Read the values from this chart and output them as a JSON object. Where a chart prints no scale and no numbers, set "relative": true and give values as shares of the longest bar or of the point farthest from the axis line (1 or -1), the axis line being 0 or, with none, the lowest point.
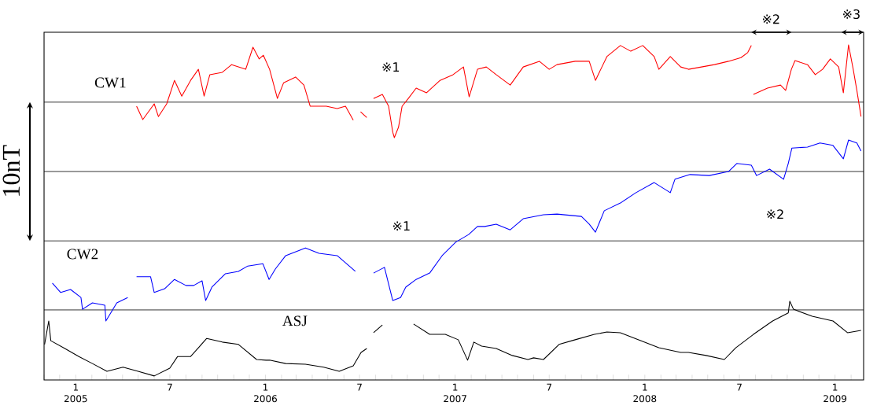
{
  "chart_data": {
    "type": "line",
    "relative": true,
    "line_style": "solid",
    "xlim": [
      "2004-11-01",
      "2009-02-25"
    ],
    "xticks": [
      {
        "value": "2004-11",
        "label": null
      },
      {
        "value": "2004-12",
        "label": null
      },
      {
        "value": "2005-01",
        "label": "1 2005"
      },
      {
        "value": "2005-02",
        "label": null
      },
      {
        "value": "2005-03",
        "label": null
      },
      {
        "value": "2005-04",
        "label": null
      },
      {
        "value": "2005-05",
        "label": null
      },
      {
        "value": "2005-06",
        "label": null
      },
      {
        "value": "2005-07",
        "label": "7"
      },
      {
        "value": "2005-08",
        "label": null
      },
      {
        "value": "2005-09",
        "label": null
      },
      {
        "value": "2005-10",
        "label": null
      },
      {
        "value": "2005-11",
        "label": null
      },
      {
        "value": "2005-12",
        "label": null
      },
      {
        "value": "2006-01",
        "label": "1 2006"
      },
      {
        "value": "2006-02",
        "label": null
      },
      {
        "value": "2006-03",
        "label": null
      },
      {
        "value": "2006-04",
        "label": null
      },
      {
        "value": "2006-05",
        "label": null
      },
      {
        "value": "2006-06",
        "label": null
      },
      {
        "value": "2006-07",
        "label": "7"
      },
      {
        "value": "2006-08",
        "label": null
      },
      {
        "value": "2006-09",
        "label": null
      },
      {
        "value": "2006-10",
        "label": null
      },
      {
        "value": "2006-11",
        "label": null
      },
      {
        "value": "2006-12",
        "label": null
      },
      {
        "value": "2007-01",
        "label": "1 2007"
      },
      {
        "value": "2007-02",
        "label": null
      },
      {
        "value": "2007-03",
        "label": null
      },
      {
        "value": "2007-04",
        "label": null
      },
      {
        "value": "2007-05",
        "label": null
      },
      {
        "value": "2007-06",
        "label": null
      },
      {
        "value": "2007-07",
        "label": "7"
      },
      {
        "value": "2007-08",
        "label": null
      },
      {
        "value": "2007-09",
        "label": null
      },
      {
        "value": "2007-10",
        "label": null
      },
      {
        "value": "2007-11",
        "label": null
      },
      {
        "value": "2007-12",
        "label": null
      },
      {
        "value": "2008-01",
        "label": "1 2008"
      },
      {
        "value": "2008-02",
        "label": null
      },
      {
        "value": "2008-03",
        "label": null
      },
      {
        "value": "2008-04",
        "label": null
      },
      {
        "value": "2008-05",
        "label": null
      },
      {
        "value": "2008-06",
        "label": null
      },
      {
        "value": "2008-07",
        "label": "7"
      },
      {
        "value": "2008-08",
        "label": null
      },
      {
        "value": "2008-09",
        "label": null
      },
      {
        "value": "2008-10",
        "label": null
      },
      {
        "value": "2008-11",
        "label": null
      },
      {
        "value": "2008-12",
        "label": null
      },
      {
        "value": "2009-01",
        "label": "1 2009"
      },
      {
        "value": "2009-02",
        "label": null
      }
    ],
    "series": [
      {
        "name": "CW1",
        "color": "#ff0000",
        "x": [
          "2005-04-28",
          "2005-05-10",
          "2005-06-01",
          "2005-06-09",
          "2005-06-25",
          "2005-07-10",
          "2005-07-24",
          "2005-08-10",
          "2005-08-25",
          "2005-09-05",
          "2005-09-16",
          "2005-10-10",
          "2005-10-28",
          "2005-11-24",
          "2005-12-08",
          "2005-12-20",
          "2005-12-28",
          "2006-01-09",
          "2006-01-24",
          "2006-02-05",
          "2006-02-28",
          "2006-03-16",
          "2006-03-28",
          "2006-04-28",
          "2006-05-19",
          "2006-06-04",
          "2006-06-19",
          "2006-06-30",
          "2006-07-03",
          "2006-07-15",
          "2006-07-20",
          "2006-07-28",
          "2006-08-14",
          "2006-08-26",
          "2006-09-03",
          "2006-09-06",
          "2006-09-14",
          "2006-09-21",
          "2006-10-03",
          "2006-10-18",
          "2006-11-07",
          "2006-12-03",
          "2006-12-28",
          "2007-01-17",
          "2007-01-28",
          "2007-02-13",
          "2007-03-02",
          "2007-03-21",
          "2007-04-17",
          "2007-05-12",
          "2007-06-12",
          "2007-07-01",
          "2007-07-16",
          "2007-08-20",
          "2007-09-16",
          "2007-09-28",
          "2007-10-20",
          "2007-11-15",
          "2007-12-05",
          "2007-12-28",
          "2008-01-19",
          "2008-01-28",
          "2008-02-19",
          "2008-03-10",
          "2008-03-25",
          "2008-04-19",
          "2008-05-14",
          "2008-06-10",
          "2008-07-04",
          "2008-07-17",
          "2008-07-24",
          "2008-07-26",
          "2008-07-28",
          "2008-08-24",
          "2008-09-18",
          "2008-09-28",
          "2008-10-09",
          "2008-10-16",
          "2008-11-09",
          "2008-11-24",
          "2008-12-08",
          "2008-12-23",
          "2009-01-08",
          "2009-01-17",
          "2009-01-27",
          "2009-02-05",
          "2009-02-12",
          "2009-02-20"
        ],
        "values": [
          0.817,
          0.777,
          0.824,
          0.786,
          0.824,
          0.894,
          0.847,
          0.894,
          0.927,
          0.847,
          0.911,
          0.918,
          0.941,
          0.927,
          0.993,
          0.958,
          0.969,
          0.927,
          0.84,
          0.887,
          0.904,
          0.88,
          0.817,
          0.817,
          0.81,
          0.817,
          0.775,
          null,
          0.8,
          0.783,
          null,
          0.84,
          0.852,
          0.817,
          0.739,
          0.723,
          0.754,
          0.817,
          0.84,
          0.871,
          0.857,
          0.894,
          0.911,
          0.934,
          0.845,
          0.927,
          0.934,
          0.911,
          0.88,
          0.934,
          0.951,
          0.927,
          0.941,
          0.951,
          0.951,
          0.894,
          0.965,
          0.998,
          0.981,
          0.998,
          0.965,
          0.927,
          0.965,
          0.934,
          0.927,
          0.934,
          0.941,
          0.951,
          0.962,
          0.977,
          0.998,
          null,
          0.852,
          0.871,
          0.88,
          0.864,
          0.927,
          0.953,
          0.941,
          0.911,
          0.927,
          0.958,
          0.934,
          0.857,
          1.0,
          0.927,
          0.864,
          0.786
        ]
      },
      {
        "name": "CW2",
        "color": "#0000ff",
        "x": [
          "2004-11-17",
          "2004-12-03",
          "2004-12-22",
          "2005-01-11",
          "2005-01-14",
          "2005-02-02",
          "2005-02-26",
          "2005-02-28",
          "2005-03-21",
          "2005-04-11",
          "2005-04-20",
          "2005-04-28",
          "2005-05-25",
          "2005-06-01",
          "2005-06-21",
          "2005-07-10",
          "2005-08-01",
          "2005-08-16",
          "2005-09-01",
          "2005-09-08",
          "2005-09-20",
          "2005-10-16",
          "2005-11-10",
          "2005-11-28",
          "2005-12-27",
          "2006-01-08",
          "2006-01-20",
          "2006-02-09",
          "2006-03-19",
          "2006-04-14",
          "2006-05-19",
          "2006-06-23",
          "2006-07-10",
          "2006-07-28",
          "2006-08-18",
          "2006-09-03",
          "2006-09-18",
          "2006-09-28",
          "2006-10-18",
          "2006-11-13",
          "2006-12-07",
          "2007-01-02",
          "2007-01-27",
          "2007-02-13",
          "2007-02-27",
          "2007-03-21",
          "2007-04-17",
          "2007-05-12",
          "2007-06-20",
          "2007-07-16",
          "2007-09-01",
          "2007-09-16",
          "2007-09-28",
          "2007-10-15",
          "2007-11-15",
          "2007-12-15",
          "2008-01-19",
          "2008-02-19",
          "2008-02-28",
          "2008-03-28",
          "2008-05-04",
          "2008-06-10",
          "2008-06-26",
          "2008-07-24",
          "2008-08-03",
          "2008-08-28",
          "2008-09-24",
          "2008-10-03",
          "2008-10-10",
          "2008-11-09",
          "2008-12-03",
          "2008-12-28",
          "2009-01-17",
          "2009-01-27",
          "2009-02-12",
          "2009-02-20"
        ],
        "values": [
          0.289,
          0.261,
          0.27,
          0.246,
          0.211,
          0.23,
          0.223,
          0.176,
          0.23,
          0.246,
          null,
          0.308,
          0.308,
          0.261,
          0.272,
          0.3,
          0.282,
          0.282,
          0.296,
          0.237,
          0.277,
          0.317,
          0.324,
          0.34,
          0.347,
          0.3,
          0.331,
          0.371,
          0.394,
          0.378,
          0.371,
          0.324,
          null,
          0.319,
          0.336,
          0.237,
          0.246,
          0.277,
          0.3,
          0.319,
          0.371,
          0.411,
          0.434,
          0.458,
          0.458,
          0.465,
          0.448,
          0.481,
          0.493,
          0.495,
          0.488,
          0.465,
          0.441,
          0.505,
          0.528,
          0.559,
          0.589,
          0.559,
          0.599,
          0.613,
          0.61,
          0.622,
          0.646,
          0.641,
          0.61,
          0.629,
          0.599,
          0.646,
          0.692,
          0.695,
          0.707,
          0.7,
          0.66,
          0.716,
          0.707,
          0.683
        ]
      },
      {
        "name": "ASJ",
        "color": "#000000",
        "x": [
          "2004-11-02",
          "2004-11-10",
          "2004-11-14",
          "2004-12-11",
          "2005-01-07",
          "2005-02-02",
          "2005-03-02",
          "2005-04-02",
          "2005-05-01",
          "2005-06-01",
          "2005-07-01",
          "2005-07-16",
          "2005-08-10",
          "2005-08-25",
          "2005-09-10",
          "2005-10-10",
          "2005-11-10",
          "2005-12-15",
          "2006-01-02",
          "2006-01-09",
          "2006-02-09",
          "2006-03-19",
          "2006-04-23",
          "2006-05-23",
          "2006-06-19",
          "2006-07-04",
          "2006-07-15",
          "2006-07-21",
          "2006-07-28",
          "2006-08-14",
          "2006-09-10",
          "2006-10-13",
          "2006-11-13",
          "2006-12-13",
          "2007-01-07",
          "2007-01-25",
          "2007-02-06",
          "2007-02-21",
          "2007-03-21",
          "2007-04-21",
          "2007-05-21",
          "2007-06-01",
          "2007-06-20",
          "2007-07-20",
          "2007-08-20",
          "2007-09-26",
          "2007-10-20",
          "2007-11-15",
          "2007-12-25",
          "2008-01-28",
          "2008-03-10",
          "2008-03-25",
          "2008-04-28",
          "2008-06-02",
          "2008-06-24",
          "2008-07-28",
          "2008-09-03",
          "2008-10-03",
          "2008-10-06",
          "2008-10-13",
          "2008-11-18",
          "2008-12-28",
          "2009-01-25",
          "2009-02-20"
        ],
        "values": [
          0.106,
          0.176,
          0.117,
          0.094,
          0.07,
          0.049,
          0.026,
          0.038,
          0.026,
          0.012,
          0.035,
          0.07,
          0.07,
          0.096,
          0.124,
          0.113,
          0.106,
          0.061,
          0.059,
          0.059,
          0.049,
          0.047,
          0.038,
          0.026,
          0.042,
          0.082,
          0.094,
          null,
          0.141,
          0.164,
          null,
          0.167,
          0.136,
          0.136,
          0.12,
          0.059,
          0.113,
          0.101,
          0.094,
          0.073,
          0.061,
          0.066,
          0.061,
          0.106,
          0.12,
          0.136,
          0.143,
          0.141,
          0.117,
          0.096,
          0.082,
          0.082,
          0.073,
          0.061,
          0.096,
          0.136,
          0.176,
          0.2,
          0.235,
          0.211,
          0.19,
          0.176,
          0.141,
          0.148
        ]
      }
    ],
    "ref_lines": [
      {
        "axis": "y",
        "value": 0.829
      },
      {
        "axis": "y",
        "value": 0.622
      },
      {
        "axis": "y",
        "value": 0.415
      },
      {
        "axis": "y",
        "value": 0.209
      }
    ],
    "annotations": [
      "※2",
      "※3",
      "※1",
      "※1",
      "※2",
      "10nT"
    ]
  }
}
